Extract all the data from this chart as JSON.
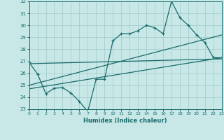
{
  "xlabel": "Humidex (Indice chaleur)",
  "bg_color": "#c8e8e8",
  "grid_color": "#a0c8c8",
  "line_color": "#1a6b6b",
  "xlim": [
    0,
    23
  ],
  "ylim": [
    23,
    32
  ],
  "yticks": [
    23,
    24,
    25,
    26,
    27,
    28,
    29,
    30,
    31,
    32
  ],
  "xticks": [
    0,
    1,
    2,
    3,
    4,
    5,
    6,
    7,
    8,
    9,
    10,
    11,
    12,
    13,
    14,
    15,
    16,
    17,
    18,
    19,
    20,
    21,
    22,
    23
  ],
  "data_x": [
    0,
    1,
    2,
    3,
    4,
    5,
    6,
    7,
    8,
    9,
    10,
    11,
    12,
    13,
    14,
    15,
    16,
    17,
    18,
    19,
    20,
    21,
    22,
    23
  ],
  "data_y": [
    26.9,
    25.95,
    24.3,
    24.75,
    24.8,
    24.35,
    23.65,
    22.8,
    25.5,
    25.5,
    28.7,
    29.3,
    29.3,
    29.55,
    30.0,
    29.8,
    29.3,
    32.0,
    30.65,
    30.0,
    29.2,
    28.55,
    27.3,
    27.3
  ],
  "trend1_x": [
    0,
    23
  ],
  "trend1_y": [
    26.8,
    27.2
  ],
  "trend2_x": [
    0,
    23
  ],
  "trend2_y": [
    25.0,
    29.2
  ],
  "trend3_x": [
    0,
    23
  ],
  "trend3_y": [
    24.7,
    27.3
  ]
}
